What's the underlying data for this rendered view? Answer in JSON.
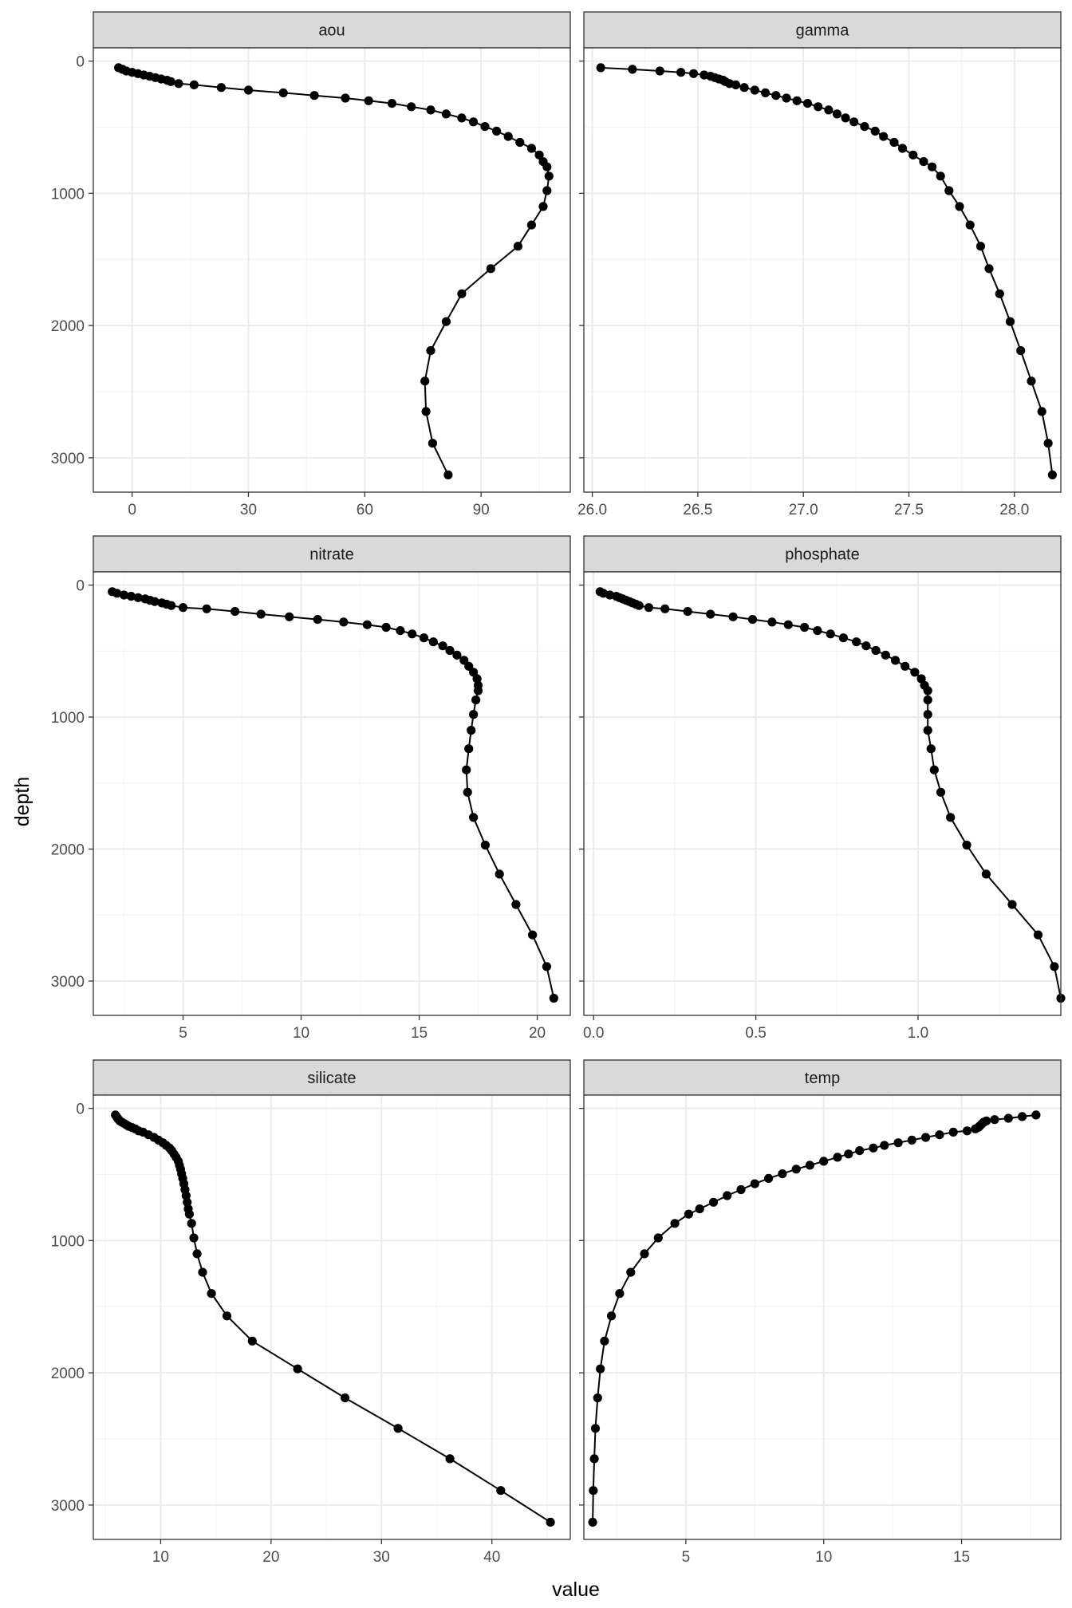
{
  "figure": {
    "xlabel": "value",
    "ylabel": "depth"
  },
  "colors": {
    "background": "#ffffff",
    "strip_fill": "#d9d9d9",
    "strip_border": "#333333",
    "panel_border": "#333333",
    "grid_major": "#ebebeb",
    "grid_minor": "#f5f5f5",
    "series": "#000000",
    "tick_label": "#4d4d4d"
  },
  "chart_data": {
    "type": "line",
    "layout": "facet_wrap, 2 columns, free x scales, reversed y axis",
    "xlabel": "value",
    "ylabel": "depth",
    "y_scale": {
      "reversed": true,
      "range": [
        3260,
        -100
      ],
      "ticks": [
        0,
        1000,
        2000,
        3000
      ],
      "tick_labels": [
        "0",
        "1000",
        "2000",
        "3000"
      ]
    },
    "depths": [
      50,
      62,
      75,
      85,
      95,
      105,
      115,
      125,
      135,
      145,
      155,
      170,
      180,
      200,
      220,
      240,
      260,
      280,
      300,
      320,
      345,
      370,
      400,
      430,
      460,
      495,
      530,
      570,
      615,
      660,
      710,
      760,
      800,
      870,
      980,
      1100,
      1240,
      1400,
      1570,
      1760,
      1970,
      2190,
      2420,
      2650,
      2890,
      3130
    ],
    "panels": [
      {
        "name": "aou",
        "x_range": [
          -10,
          113
        ],
        "ticks": [
          0,
          30,
          60,
          90
        ],
        "tick_labels": [
          "0",
          "30",
          "60",
          "90"
        ],
        "values": [
          -3.5,
          -2.5,
          -1.5,
          0,
          1.5,
          3,
          4.5,
          6,
          7.5,
          9,
          10,
          12,
          16,
          23,
          30,
          39,
          47,
          55,
          61,
          67,
          72,
          77,
          81,
          85,
          88,
          91,
          94,
          97,
          100,
          103,
          105,
          106,
          107,
          107.5,
          107,
          106,
          103,
          99.5,
          92.5,
          85,
          81,
          77,
          75.5,
          75.8,
          77.5,
          81.5
        ]
      },
      {
        "name": "gamma",
        "x_range": [
          25.96,
          28.22
        ],
        "ticks": [
          26.0,
          26.5,
          27.0,
          27.5,
          28.0
        ],
        "tick_labels": [
          "26.0",
          "26.5",
          "27.0",
          "27.5",
          "28.0"
        ],
        "values": [
          26.04,
          26.19,
          26.32,
          26.42,
          26.48,
          26.53,
          26.56,
          26.58,
          26.6,
          26.62,
          26.63,
          26.65,
          26.68,
          26.72,
          26.77,
          26.82,
          26.87,
          26.92,
          26.97,
          27.02,
          27.07,
          27.12,
          27.16,
          27.2,
          27.24,
          27.29,
          27.34,
          27.38,
          27.43,
          27.47,
          27.52,
          27.57,
          27.61,
          27.65,
          27.69,
          27.74,
          27.79,
          27.84,
          27.88,
          27.93,
          27.98,
          28.03,
          28.08,
          28.13,
          28.16,
          28.18
        ]
      },
      {
        "name": "nitrate",
        "x_range": [
          1.2,
          21.4
        ],
        "ticks": [
          5,
          10,
          15,
          20
        ],
        "tick_labels": [
          "5",
          "10",
          "15",
          "20"
        ],
        "values": [
          2.0,
          2.2,
          2.5,
          2.8,
          3.1,
          3.4,
          3.6,
          3.8,
          4.1,
          4.3,
          4.5,
          5.0,
          6.0,
          7.2,
          8.3,
          9.5,
          10.7,
          11.8,
          12.8,
          13.6,
          14.2,
          14.7,
          15.2,
          15.6,
          16.0,
          16.3,
          16.6,
          16.9,
          17.1,
          17.3,
          17.45,
          17.5,
          17.5,
          17.4,
          17.3,
          17.2,
          17.1,
          17.0,
          17.05,
          17.3,
          17.8,
          18.4,
          19.1,
          19.8,
          20.4,
          20.7
        ]
      },
      {
        "name": "phosphate",
        "x_range": [
          -0.03,
          1.44
        ],
        "ticks": [
          0.0,
          0.5,
          1.0
        ],
        "tick_labels": [
          "0.0",
          "0.5",
          "1.0"
        ],
        "values": [
          0.02,
          0.03,
          0.05,
          0.07,
          0.08,
          0.09,
          0.1,
          0.11,
          0.12,
          0.13,
          0.14,
          0.17,
          0.22,
          0.29,
          0.36,
          0.43,
          0.49,
          0.55,
          0.6,
          0.65,
          0.69,
          0.73,
          0.77,
          0.81,
          0.84,
          0.87,
          0.9,
          0.93,
          0.96,
          0.99,
          1.01,
          1.02,
          1.03,
          1.03,
          1.03,
          1.03,
          1.04,
          1.05,
          1.07,
          1.1,
          1.15,
          1.21,
          1.29,
          1.37,
          1.42,
          1.44
        ]
      },
      {
        "name": "silicate",
        "x_range": [
          3.9,
          47.1
        ],
        "ticks": [
          10,
          20,
          30,
          40
        ],
        "tick_labels": [
          "10",
          "20",
          "30",
          "40"
        ],
        "values": [
          5.9,
          6.0,
          6.1,
          6.2,
          6.3,
          6.5,
          6.7,
          6.9,
          7.1,
          7.4,
          7.7,
          8.0,
          8.4,
          8.9,
          9.4,
          9.8,
          10.2,
          10.5,
          10.8,
          11.0,
          11.2,
          11.4,
          11.6,
          11.7,
          11.8,
          11.9,
          12.0,
          12.1,
          12.2,
          12.3,
          12.4,
          12.5,
          12.6,
          12.8,
          13.0,
          13.3,
          13.8,
          14.6,
          16.0,
          18.3,
          22.4,
          26.7,
          31.5,
          36.2,
          40.8,
          45.3
        ]
      },
      {
        "name": "temp",
        "x_range": [
          1.3,
          18.6
        ],
        "ticks": [
          5,
          10,
          15
        ],
        "tick_labels": [
          "5",
          "10",
          "15"
        ],
        "values": [
          17.7,
          17.2,
          16.7,
          16.2,
          15.9,
          15.8,
          15.75,
          15.7,
          15.65,
          15.6,
          15.5,
          15.2,
          14.7,
          14.2,
          13.7,
          13.2,
          12.7,
          12.2,
          11.8,
          11.3,
          10.9,
          10.5,
          10.0,
          9.5,
          9.0,
          8.5,
          8.0,
          7.5,
          7.0,
          6.5,
          6.0,
          5.5,
          5.1,
          4.6,
          4.0,
          3.5,
          3.0,
          2.6,
          2.3,
          2.05,
          1.9,
          1.8,
          1.72,
          1.68,
          1.64,
          1.62
        ]
      }
    ]
  }
}
